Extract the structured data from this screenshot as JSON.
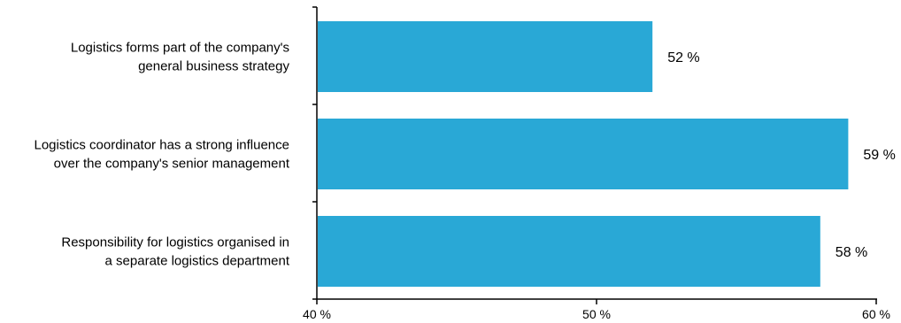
{
  "chart_data": {
    "type": "bar",
    "orientation": "horizontal",
    "categories": [
      [
        "Logistics forms part of the company's",
        "general business strategy"
      ],
      [
        "Logistics coordinator has a strong influence",
        "over the company's senior management"
      ],
      [
        "Responsibility for logistics organised in",
        "a separate logistics department"
      ]
    ],
    "values": [
      52,
      59,
      58
    ],
    "value_labels": [
      "52 %",
      "59 %",
      "58 %"
    ],
    "xlim": [
      40,
      60
    ],
    "xticks": [
      40,
      50,
      60
    ],
    "xtick_labels": [
      "40 %",
      "50 %",
      "60 %"
    ],
    "title": "",
    "xlabel": "",
    "ylabel": "",
    "grid": false,
    "legend": "none",
    "bar_color": "#29a8d6",
    "axis_color": "#000000"
  }
}
